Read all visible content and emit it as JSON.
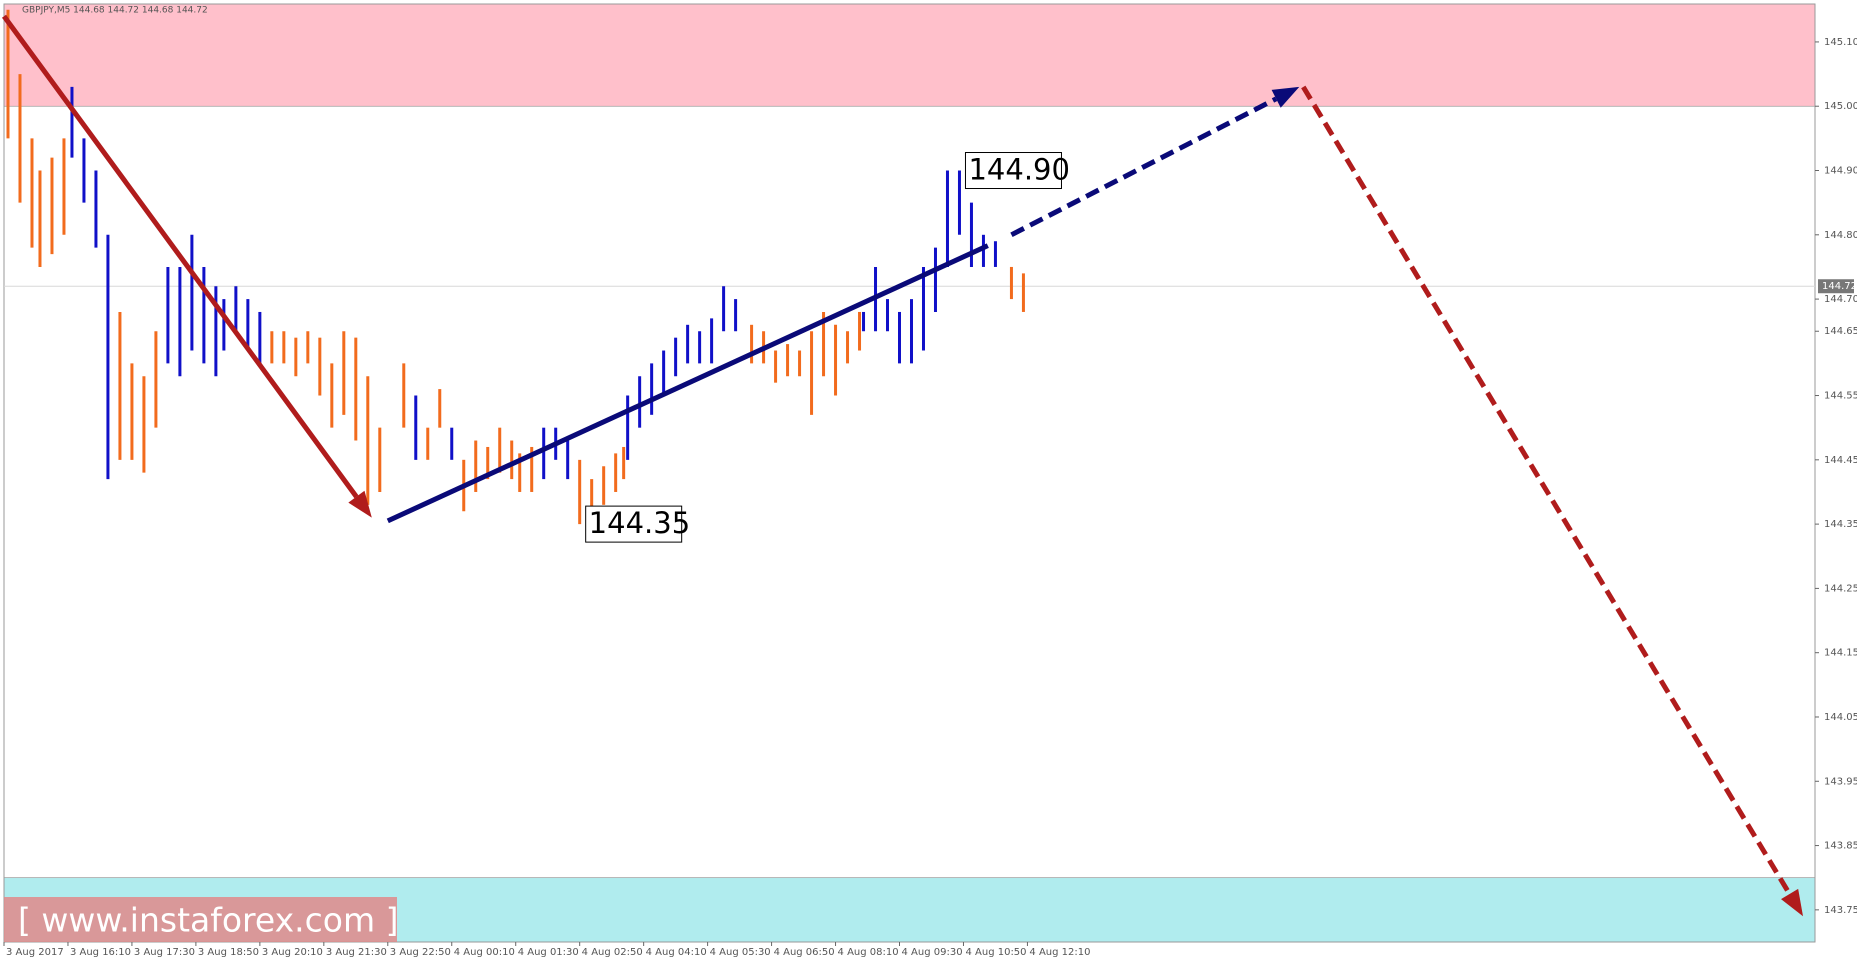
{
  "chart_data": {
    "type": "ohlc",
    "title": "GBPJPY,M5  144.68 144.72 144.68 144.72",
    "xlim": [
      0,
      453
    ],
    "ylim": [
      143.7,
      145.159
    ],
    "xticks": [
      {
        "value": 0,
        "label": "3 Aug 2017"
      },
      {
        "value": 16,
        "label": "3 Aug 16:10"
      },
      {
        "value": 32,
        "label": "3 Aug 17:30"
      },
      {
        "value": 48,
        "label": "3 Aug 18:50"
      },
      {
        "value": 64,
        "label": "3 Aug 20:10"
      },
      {
        "value": 80,
        "label": "3 Aug 21:30"
      },
      {
        "value": 96,
        "label": "3 Aug 22:50"
      },
      {
        "value": 112,
        "label": "4 Aug 00:10"
      },
      {
        "value": 128,
        "label": "4 Aug 01:30"
      },
      {
        "value": 144,
        "label": "4 Aug 02:50"
      },
      {
        "value": 160,
        "label": "4 Aug 04:10"
      },
      {
        "value": 176,
        "label": "4 Aug 05:30"
      },
      {
        "value": 192,
        "label": "4 Aug 06:50"
      },
      {
        "value": 208,
        "label": "4 Aug 08:10"
      },
      {
        "value": 224,
        "label": "4 Aug 09:30"
      },
      {
        "value": 240,
        "label": "4 Aug 10:50"
      },
      {
        "value": 256,
        "label": "4 Aug 12:10"
      }
    ],
    "yticks": [
      {
        "value": 145.1,
        "label": "145.10"
      },
      {
        "value": 145.0,
        "label": "145.00"
      },
      {
        "value": 144.9,
        "label": "144.90"
      },
      {
        "value": 144.8,
        "label": "144.80"
      },
      {
        "value": 144.7,
        "label": "144.70"
      },
      144.65,
      144.55,
      144.45,
      144.35,
      144.25,
      144.15,
      144.05,
      143.95,
      143.85,
      143.75
    ],
    "zones": [
      {
        "from": 145.0,
        "to": 145.159,
        "color": "#ffc0cb"
      },
      {
        "from": 143.7,
        "to": 143.8,
        "color": "#b0ecee"
      }
    ],
    "bars": {
      "x": [
        1,
        4,
        7,
        9,
        12,
        15,
        17,
        20,
        23,
        26,
        29,
        32,
        35,
        38,
        41,
        44,
        47,
        50,
        53,
        55,
        58,
        61,
        64,
        67,
        70,
        73,
        76,
        79,
        82,
        85,
        88,
        91,
        94,
        100,
        103,
        106,
        109,
        112,
        115,
        118,
        121,
        124,
        127,
        129,
        132,
        135,
        138,
        141,
        144,
        147,
        150,
        153,
        155,
        156,
        159,
        162,
        165,
        168,
        171,
        174,
        177,
        180,
        183,
        187,
        190,
        193,
        196,
        199,
        202,
        205,
        208,
        211,
        214,
        215,
        218,
        221,
        224,
        227,
        230,
        233,
        236,
        239,
        242,
        245,
        248,
        252,
        255
      ],
      "high": [
        145.15,
        145.05,
        144.95,
        144.9,
        144.92,
        144.95,
        145.03,
        144.95,
        144.9,
        144.8,
        144.68,
        144.6,
        144.58,
        144.65,
        144.75,
        144.75,
        144.8,
        144.75,
        144.72,
        144.7,
        144.72,
        144.7,
        144.68,
        144.65,
        144.65,
        144.64,
        144.65,
        144.64,
        144.6,
        144.65,
        144.64,
        144.58,
        144.5,
        144.6,
        144.55,
        144.5,
        144.56,
        144.5,
        144.45,
        144.48,
        144.47,
        144.5,
        144.48,
        144.46,
        144.47,
        144.5,
        144.5,
        144.48,
        144.45,
        144.42,
        144.44,
        144.46,
        144.47,
        144.55,
        144.58,
        144.6,
        144.62,
        144.64,
        144.66,
        144.65,
        144.67,
        144.72,
        144.7,
        144.66,
        144.65,
        144.62,
        144.63,
        144.62,
        144.65,
        144.68,
        144.66,
        144.65,
        144.68,
        144.68,
        144.75,
        144.7,
        144.68,
        144.7,
        144.75,
        144.78,
        144.9,
        144.9,
        144.85,
        144.8,
        144.79,
        144.75,
        144.74
      ],
      "low": [
        144.95,
        144.85,
        144.78,
        144.75,
        144.77,
        144.8,
        144.92,
        144.85,
        144.78,
        144.42,
        144.45,
        144.45,
        144.43,
        144.5,
        144.6,
        144.58,
        144.62,
        144.6,
        144.58,
        144.62,
        144.65,
        144.62,
        144.6,
        144.6,
        144.6,
        144.58,
        144.6,
        144.55,
        144.5,
        144.52,
        144.48,
        144.38,
        144.4,
        144.5,
        144.45,
        144.45,
        144.5,
        144.45,
        144.37,
        144.4,
        144.42,
        144.43,
        144.42,
        144.4,
        144.4,
        144.42,
        144.45,
        144.42,
        144.35,
        144.36,
        144.38,
        144.4,
        144.42,
        144.45,
        144.5,
        144.52,
        144.55,
        144.58,
        144.6,
        144.6,
        144.6,
        144.65,
        144.65,
        144.6,
        144.6,
        144.57,
        144.58,
        144.58,
        144.52,
        144.58,
        144.55,
        144.6,
        144.62,
        144.65,
        144.65,
        144.65,
        144.6,
        144.6,
        144.62,
        144.68,
        144.75,
        144.8,
        144.75,
        144.75,
        144.75,
        144.7,
        144.68
      ],
      "colors": [
        "#f26b1d",
        "#f26b1d",
        "#f26b1d",
        "#f26b1d",
        "#f26b1d",
        "#f26b1d",
        "#1010c8",
        "#1010c8",
        "#1010c8",
        "#1010c8",
        "#f26b1d",
        "#f26b1d",
        "#f26b1d",
        "#f26b1d",
        "#1010c8",
        "#1010c8",
        "#1010c8",
        "#1010c8",
        "#1010c8",
        "#1010c8",
        "#1010c8",
        "#1010c8",
        "#1010c8",
        "#f26b1d",
        "#f26b1d",
        "#f26b1d",
        "#f26b1d",
        "#f26b1d",
        "#f26b1d",
        "#f26b1d",
        "#f26b1d",
        "#f26b1d",
        "#f26b1d",
        "#f26b1d",
        "#1010c8",
        "#f26b1d",
        "#f26b1d",
        "#1010c8",
        "#f26b1d",
        "#f26b1d",
        "#f26b1d",
        "#f26b1d",
        "#f26b1d",
        "#f26b1d",
        "#f26b1d",
        "#1010c8",
        "#1010c8",
        "#1010c8",
        "#f26b1d",
        "#f26b1d",
        "#f26b1d",
        "#f26b1d",
        "#f26b1d",
        "#1010c8",
        "#1010c8",
        "#1010c8",
        "#1010c8",
        "#1010c8",
        "#1010c8",
        "#1010c8",
        "#1010c8",
        "#1010c8",
        "#1010c8",
        "#f26b1d",
        "#f26b1d",
        "#f26b1d",
        "#f26b1d",
        "#f26b1d",
        "#f26b1d",
        "#f26b1d",
        "#f26b1d",
        "#f26b1d",
        "#f26b1d",
        "#1010c8",
        "#1010c8",
        "#1010c8",
        "#1010c8",
        "#1010c8",
        "#1010c8",
        "#1010c8",
        "#1010c8",
        "#1010c8",
        "#1010c8",
        "#1010c8",
        "#1010c8",
        "#f26b1d",
        "#f26b1d"
      ]
    },
    "current_price": {
      "value": 144.72,
      "label": "144.72"
    },
    "annotations": [
      {
        "text": "144.90",
        "x": 239,
        "y": 144.9
      },
      {
        "text": "144.35",
        "x": 144,
        "y": 144.35
      }
    ],
    "arrows": [
      {
        "x0": 0,
        "y0": 145.14,
        "x1": 92,
        "y1": 144.36,
        "color": "#b01c1c",
        "dashed": false
      },
      {
        "x0": 96,
        "y0": 144.355,
        "x1": 252,
        "y1": 144.8,
        "color": "#0a0a78",
        "dashed": false
      },
      {
        "x0": 252,
        "y0": 144.8,
        "x1": 324,
        "y1": 145.03,
        "color": "#0a0a78",
        "dashed": true
      },
      {
        "x0": 325,
        "y0": 145.03,
        "x1": 450,
        "y1": 143.74,
        "color": "#b01c1c",
        "dashed": true
      }
    ],
    "watermark": "[ www.instaforex.com ]"
  }
}
